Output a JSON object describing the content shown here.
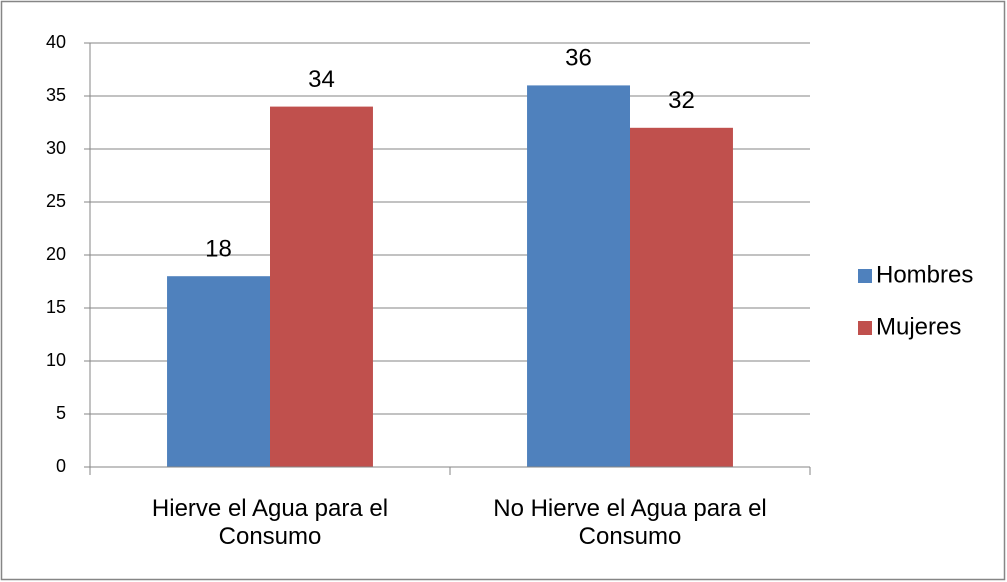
{
  "chart_data": {
    "type": "bar",
    "categories": [
      "Hierve el Agua para el Consumo",
      "No Hierve el Agua para el Consumo"
    ],
    "series": [
      {
        "name": "Hombres",
        "color": "#4f81bd",
        "values": [
          18,
          36
        ]
      },
      {
        "name": "Mujeres",
        "color": "#c0504d",
        "values": [
          34,
          32
        ]
      }
    ],
    "ylim": [
      0,
      40
    ],
    "yticks": [
      0,
      5,
      10,
      15,
      20,
      25,
      30,
      35,
      40
    ],
    "grid": true,
    "legend": "right"
  }
}
